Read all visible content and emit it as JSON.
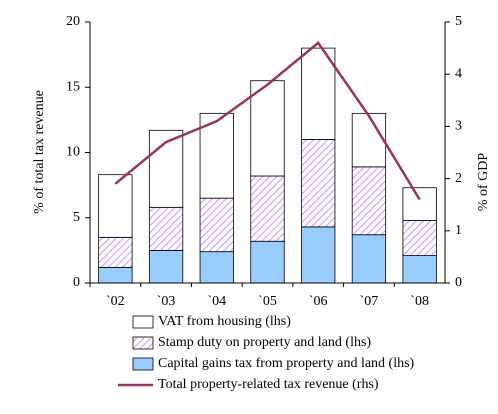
{
  "chart_data": {
    "type": "stacked-bar-line",
    "categories": [
      "`02",
      "`03",
      "`04",
      "`05",
      "`06",
      "`07",
      "`08"
    ],
    "series": [
      {
        "name": "Capital gains tax from property and land (lhs)",
        "color": "#99ccff",
        "values": [
          1.2,
          2.5,
          2.4,
          3.2,
          4.3,
          3.7,
          2.1
        ]
      },
      {
        "name": "Stamp duty on property and land (lhs)",
        "color": "#cc99ff",
        "pattern": "hatch",
        "values": [
          2.3,
          3.3,
          4.1,
          5.0,
          6.7,
          5.2,
          2.7
        ]
      },
      {
        "name": "VAT from housing (lhs)",
        "color": "#ffffff",
        "values": [
          4.8,
          5.9,
          6.5,
          7.3,
          7.0,
          4.1,
          2.5
        ]
      },
      {
        "name": "Total property-related tax revenue (rhs)",
        "color": "#993366",
        "axis": "y2",
        "kind": "line",
        "values": [
          1.9,
          2.7,
          3.1,
          3.8,
          4.6,
          3.2,
          1.6
        ]
      }
    ],
    "y_label": "% of total tax revenue",
    "y2_label": "% of GDP",
    "ylim": [
      0,
      20
    ],
    "yticks": [
      0,
      5,
      10,
      15,
      20
    ],
    "y2lim": [
      0,
      5
    ],
    "y2ticks": [
      0,
      1,
      2,
      3,
      4,
      5
    ],
    "legend": "bottom"
  }
}
